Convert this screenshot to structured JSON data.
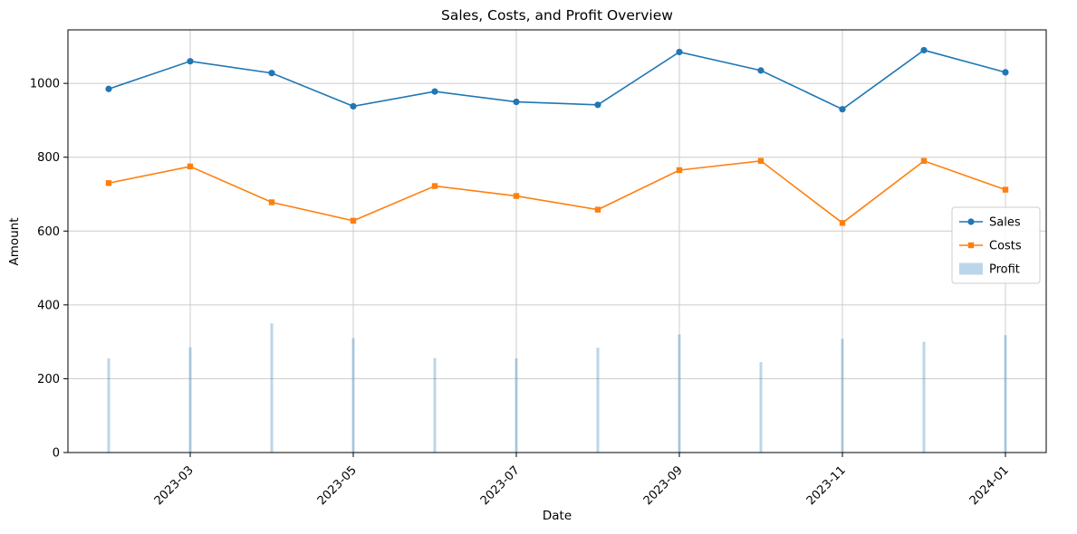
{
  "chart_data": {
    "type": "line+bar",
    "title": "Sales, Costs, and Profit Overview",
    "xlabel": "Date",
    "ylabel": "Amount",
    "x": [
      "2023-02",
      "2023-03",
      "2023-04",
      "2023-05",
      "2023-06",
      "2023-07",
      "2023-08",
      "2023-09",
      "2023-10",
      "2023-11",
      "2023-12",
      "2024-01"
    ],
    "series": [
      {
        "name": "Sales",
        "type": "line",
        "marker": "circle",
        "color": "#1f77b4",
        "values": [
          985,
          1060,
          1028,
          938,
          978,
          950,
          942,
          1085,
          1035,
          930,
          1090,
          1030
        ]
      },
      {
        "name": "Costs",
        "type": "line",
        "marker": "square",
        "color": "#ff7f0e",
        "values": [
          730,
          775,
          678,
          628,
          722,
          695,
          658,
          765,
          790,
          622,
          790,
          712
        ]
      },
      {
        "name": "Profit",
        "type": "bar",
        "color": "#1f77b4",
        "opacity": 0.3,
        "values": [
          255,
          285,
          350,
          310,
          256,
          255,
          284,
          320,
          245,
          308,
          300,
          318
        ]
      }
    ],
    "ylim": [
      0,
      1145
    ],
    "yticks": [
      0,
      200,
      400,
      600,
      800,
      1000
    ],
    "xticks": [
      {
        "index": 1,
        "label": "2023-03"
      },
      {
        "index": 3,
        "label": "2023-05"
      },
      {
        "index": 5,
        "label": "2023-07"
      },
      {
        "index": 7,
        "label": "2023-09"
      },
      {
        "index": 9,
        "label": "2023-11"
      },
      {
        "index": 11,
        "label": "2024-01"
      }
    ],
    "grid": true,
    "legend_position": "center-right",
    "legend": [
      "Sales",
      "Costs",
      "Profit"
    ]
  },
  "colors": {
    "grid": "#cccccc",
    "axis": "#000000",
    "background": "#ffffff",
    "legend_border": "#cccccc"
  }
}
